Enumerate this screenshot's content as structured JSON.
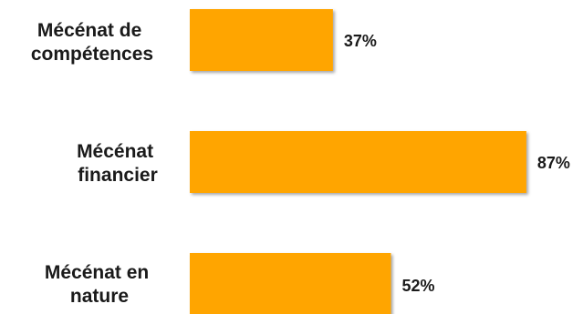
{
  "chart_data": {
    "type": "bar",
    "orientation": "horizontal",
    "categories": [
      [
        "Mécénat de",
        "compétences"
      ],
      [
        "Mécénat",
        "financier"
      ],
      [
        "Mécénat en",
        "nature"
      ]
    ],
    "values": [
      37,
      87,
      52
    ],
    "value_labels": [
      "37%",
      "87%",
      "52%"
    ],
    "xlim": [
      0,
      100
    ],
    "bar_color": "#FFA500",
    "grid": false,
    "legend": "none"
  }
}
